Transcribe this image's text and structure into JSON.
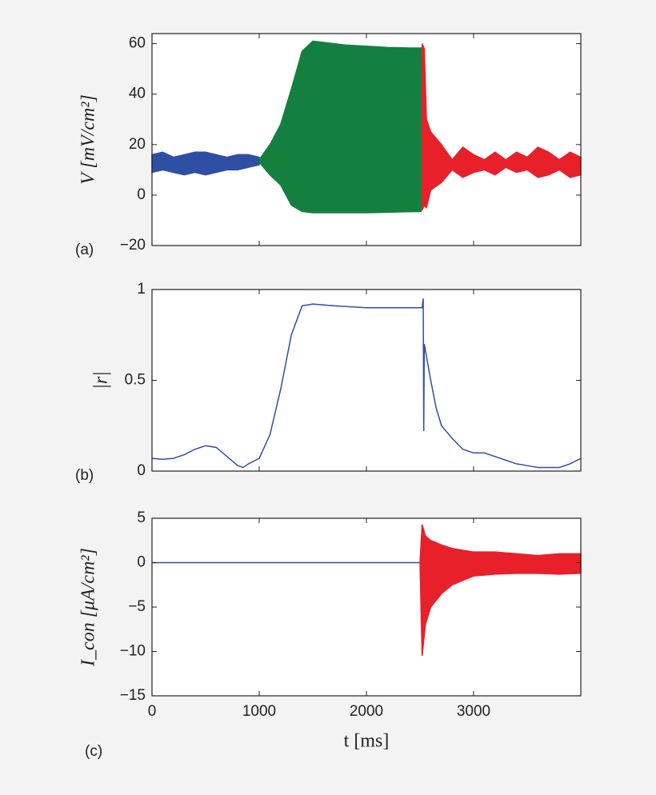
{
  "chart_data": [
    {
      "type": "band",
      "label": "(a)",
      "ylabel": "V [mV/cm²]",
      "xlim": [
        0,
        4000
      ],
      "xticks": [
        0,
        1000,
        2000,
        3000
      ],
      "ylim": [
        -20,
        64
      ],
      "yticks": [
        {
          "value": -20,
          "label": "−20"
        },
        0,
        20,
        40,
        60
      ],
      "series": [
        {
          "color": "#2e4fa3",
          "x": [
            0,
            100,
            200,
            300,
            400,
            500,
            600,
            700,
            800,
            900,
            1000
          ],
          "high": [
            16,
            17,
            15,
            16,
            17,
            17,
            16,
            15,
            16,
            16,
            15
          ],
          "low": [
            9,
            10,
            9,
            8,
            9,
            8,
            9,
            10,
            10,
            11,
            12
          ]
        },
        {
          "color": "#148040",
          "x": [
            1000,
            1100,
            1200,
            1300,
            1400,
            1500,
            1600,
            1800,
            2000,
            2200,
            2400,
            2510
          ],
          "high": [
            14,
            20,
            28,
            42,
            57,
            61,
            60.5,
            59.5,
            59,
            58.5,
            58.3,
            58.3
          ],
          "low": [
            13,
            8,
            4,
            -4,
            -6.5,
            -7,
            -7,
            -7,
            -7,
            -6.8,
            -6.6,
            -6.5
          ]
        },
        {
          "color": "#e8202a",
          "x": [
            2520,
            2540,
            2560,
            2600,
            2700,
            2800,
            2900,
            3000,
            3100,
            3200,
            3300,
            3400,
            3500,
            3600,
            3700,
            3800,
            3900,
            4000
          ],
          "high": [
            60,
            58,
            30,
            25,
            20,
            14,
            19,
            16,
            14,
            17,
            14,
            17,
            15,
            19,
            17,
            14,
            17,
            15
          ],
          "low": [
            -6,
            -4,
            -5,
            2,
            5,
            10,
            7,
            9,
            10,
            8,
            11,
            9,
            10,
            7,
            8,
            10,
            7,
            8
          ]
        }
      ]
    },
    {
      "type": "line",
      "label": "(b)",
      "ylabel": "|r|",
      "xlim": [
        0,
        4000
      ],
      "xticks": [
        0,
        1000,
        2000,
        3000
      ],
      "ylim": [
        0,
        1
      ],
      "yticks": [
        0,
        0.5,
        1
      ],
      "series": [
        {
          "color": "#2e4fa3",
          "x": [
            0,
            100,
            200,
            300,
            400,
            500,
            600,
            700,
            800,
            850,
            900,
            1000,
            1100,
            1200,
            1300,
            1400,
            1500,
            1700,
            2000,
            2300,
            2520,
            2530,
            2535,
            2540,
            2600,
            2650,
            2700,
            2800,
            2900,
            3000,
            3100,
            3200,
            3300,
            3400,
            3500,
            3600,
            3700,
            3800,
            3900,
            4000
          ],
          "values": [
            0.07,
            0.065,
            0.07,
            0.09,
            0.12,
            0.14,
            0.13,
            0.08,
            0.03,
            0.02,
            0.04,
            0.07,
            0.2,
            0.45,
            0.75,
            0.91,
            0.92,
            0.91,
            0.9,
            0.9,
            0.9,
            0.95,
            0.22,
            0.7,
            0.5,
            0.35,
            0.25,
            0.18,
            0.12,
            0.1,
            0.1,
            0.08,
            0.06,
            0.04,
            0.03,
            0.02,
            0.02,
            0.02,
            0.04,
            0.07
          ]
        }
      ]
    },
    {
      "type": "band",
      "label": "(c)",
      "ylabel": "I_con [μA/cm²]",
      "xlabel": "t [ms]",
      "xlim": [
        0,
        4000
      ],
      "xticks": [
        0,
        1000,
        2000,
        3000
      ],
      "ylim": [
        -15,
        5
      ],
      "yticks": [
        {
          "value": -15,
          "label": "−15"
        },
        {
          "value": -10,
          "label": "−10"
        },
        {
          "value": -5,
          "label": "−5"
        },
        0,
        5
      ],
      "series": [
        {
          "color": "#2e4fa3",
          "x": [
            0,
            2500
          ],
          "high": [
            0,
            0
          ],
          "low": [
            0,
            0
          ]
        },
        {
          "color": "#e8202a",
          "x": [
            2500,
            2520,
            2550,
            2600,
            2700,
            2800,
            2900,
            3000,
            3200,
            3400,
            3600,
            3800,
            4000
          ],
          "high": [
            0,
            4.3,
            3,
            2.5,
            2,
            1.6,
            1.4,
            1.2,
            1.2,
            1,
            0.8,
            1,
            1
          ],
          "low": [
            0,
            -10.5,
            -7,
            -5,
            -3.5,
            -2.5,
            -2,
            -1.5,
            -1.3,
            -1.2,
            -1.2,
            -1.3,
            -1.2
          ]
        }
      ]
    }
  ]
}
